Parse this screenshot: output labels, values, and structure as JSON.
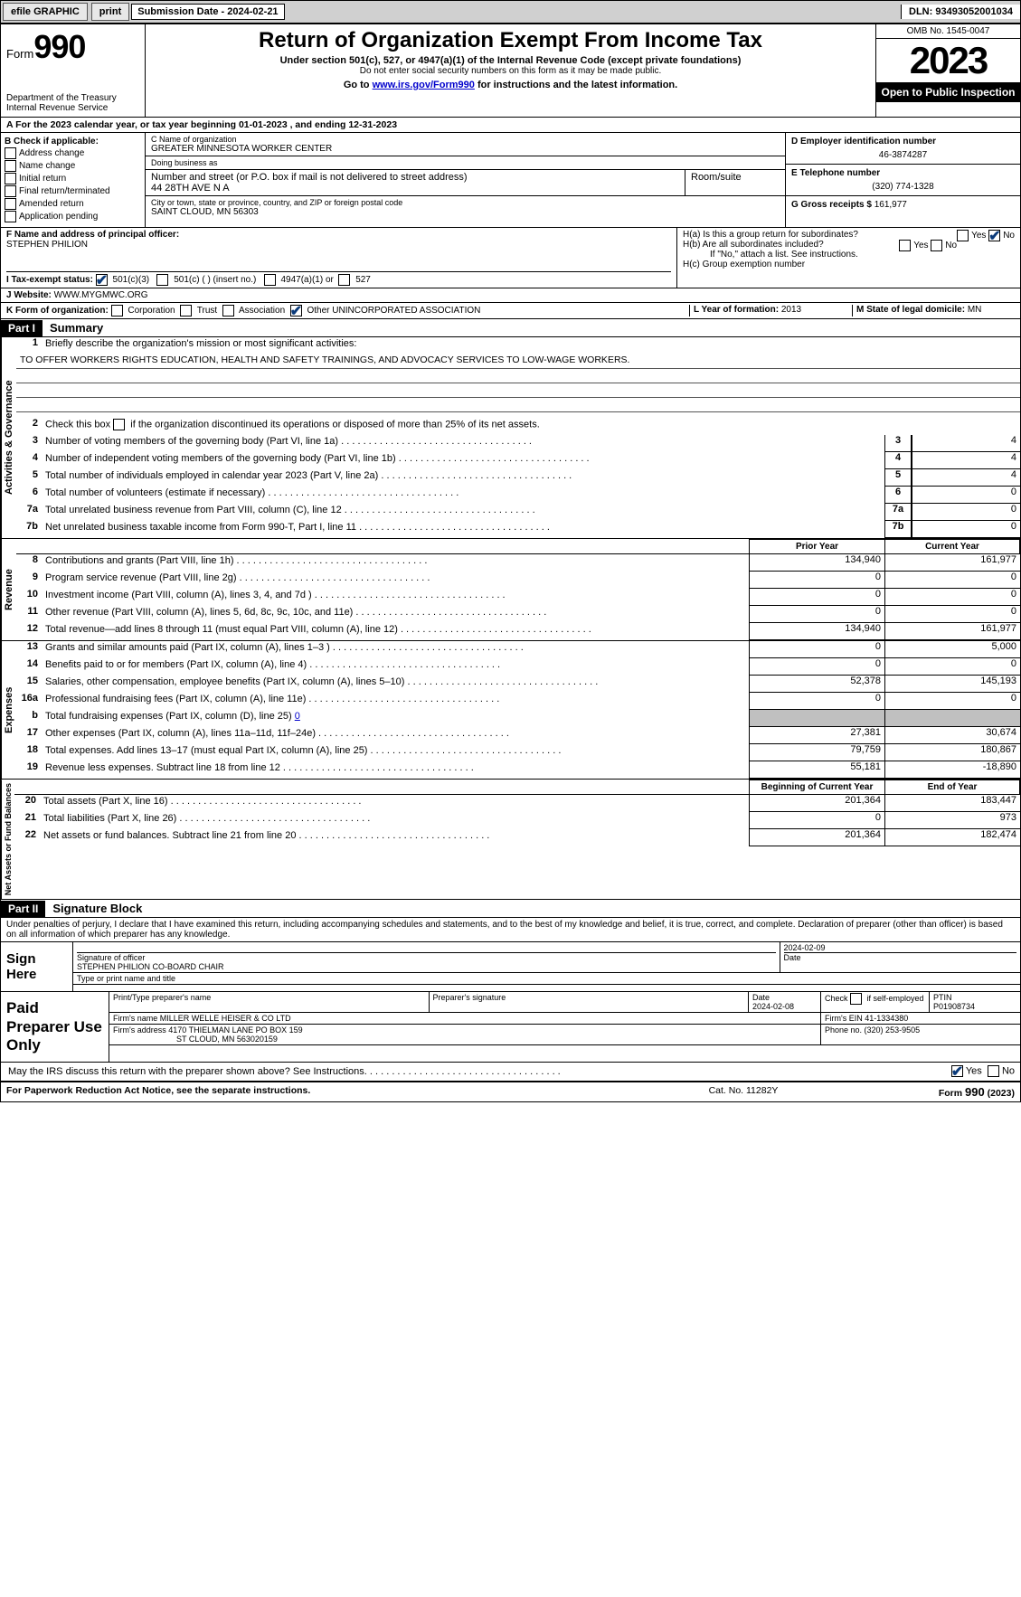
{
  "topbar": {
    "efile": "efile GRAPHIC",
    "print": "print",
    "subdate_label": "Submission Date - ",
    "subdate": "2024-02-21",
    "dln_label": "DLN: ",
    "dln": "93493052001034"
  },
  "header": {
    "form_label": "Form",
    "form_number": "990",
    "dept": "Department of the Treasury",
    "irs": "Internal Revenue Service",
    "title": "Return of Organization Exempt From Income Tax",
    "sub1": "Under section 501(c), 527, or 4947(a)(1) of the Internal Revenue Code (except private foundations)",
    "sub2": "Do not enter social security numbers on this form as it may be made public.",
    "sub3_pre": "Go to ",
    "sub3_link": "www.irs.gov/Form990",
    "sub3_post": " for instructions and the latest information.",
    "omb": "OMB No. 1545-0047",
    "year": "2023",
    "open": "Open to Public Inspection"
  },
  "row_a": {
    "text": "A For the 2023 calendar year, or tax year beginning 01-01-2023   , and ending 12-31-2023"
  },
  "box_b": {
    "label": "B Check if applicable:",
    "items": [
      "Address change",
      "Name change",
      "Initial return",
      "Final return/terminated",
      "Amended return",
      "Application pending"
    ]
  },
  "box_c": {
    "name_lbl": "C Name of organization",
    "name": "GREATER MINNESOTA WORKER CENTER",
    "dba_lbl": "Doing business as",
    "dba": "",
    "addr_lbl": "Number and street (or P.O. box if mail is not delivered to street address)",
    "addr": "44 28TH AVE N A",
    "room_lbl": "Room/suite",
    "city_lbl": "City or town, state or province, country, and ZIP or foreign postal code",
    "city": "SAINT CLOUD, MN  56303"
  },
  "box_d": {
    "lbl": "D Employer identification number",
    "val": "46-3874287"
  },
  "box_e": {
    "lbl": "E Telephone number",
    "val": "(320) 774-1328"
  },
  "box_g": {
    "lbl": "G Gross receipts $ ",
    "val": "161,977"
  },
  "box_f": {
    "lbl": "F  Name and address of principal officer:",
    "name": "STEPHEN PHILION"
  },
  "box_h": {
    "h_a": "H(a)  Is this a group return for subordinates?",
    "h_b": "H(b)  Are all subordinates included?",
    "h_note": "If \"No,\" attach a list. See instructions.",
    "h_c": "H(c)  Group exemption number ",
    "yes": "Yes",
    "no": "No"
  },
  "box_i": {
    "lbl": "I  Tax-exempt status:",
    "opts": [
      "501(c)(3)",
      "501(c) (  ) (insert no.)",
      "4947(a)(1) or",
      "527"
    ]
  },
  "box_j": {
    "lbl": "J  Website:  ",
    "val": "WWW.MYGMWC.ORG"
  },
  "box_k": {
    "lbl": "K Form of organization:",
    "opts": [
      "Corporation",
      "Trust",
      "Association",
      "Other"
    ],
    "other_val": "UNINCORPORATED ASSOCIATION"
  },
  "box_l": {
    "lbl": "L Year of formation: ",
    "val": "2013"
  },
  "box_m": {
    "lbl": "M State of legal domicile: ",
    "val": "MN"
  },
  "part1": {
    "hdr": "Part I",
    "title": "Summary",
    "sections": {
      "gov": "Activities & Governance",
      "rev": "Revenue",
      "exp": "Expenses",
      "net": "Net Assets or Fund Balances"
    },
    "line1_lbl": "Briefly describe the organization's mission or most significant activities:",
    "line1_val": "TO OFFER WORKERS RIGHTS EDUCATION, HEALTH AND SAFETY TRAININGS, AND ADVOCACY SERVICES TO LOW-WAGE WORKERS.",
    "line2": "Check this box      if the organization discontinued its operations or disposed of more than 25% of its net assets.",
    "gov_lines": [
      {
        "n": "3",
        "d": "Number of voting members of the governing body (Part VI, line 1a)",
        "v": "4"
      },
      {
        "n": "4",
        "d": "Number of independent voting members of the governing body (Part VI, line 1b)",
        "v": "4"
      },
      {
        "n": "5",
        "d": "Total number of individuals employed in calendar year 2023 (Part V, line 2a)",
        "v": "4"
      },
      {
        "n": "6",
        "d": "Total number of volunteers (estimate if necessary)",
        "v": "0"
      },
      {
        "n": "7a",
        "d": "Total unrelated business revenue from Part VIII, column (C), line 12",
        "v": "0"
      },
      {
        "n": "7b",
        "d": "Net unrelated business taxable income from Form 990-T, Part I, line 11",
        "v": "0"
      }
    ],
    "col_prior": "Prior Year",
    "col_current": "Current Year",
    "rev_lines": [
      {
        "n": "8",
        "d": "Contributions and grants (Part VIII, line 1h)",
        "p": "134,940",
        "c": "161,977"
      },
      {
        "n": "9",
        "d": "Program service revenue (Part VIII, line 2g)",
        "p": "0",
        "c": "0"
      },
      {
        "n": "10",
        "d": "Investment income (Part VIII, column (A), lines 3, 4, and 7d )",
        "p": "0",
        "c": "0"
      },
      {
        "n": "11",
        "d": "Other revenue (Part VIII, column (A), lines 5, 6d, 8c, 9c, 10c, and 11e)",
        "p": "0",
        "c": "0"
      },
      {
        "n": "12",
        "d": "Total revenue—add lines 8 through 11 (must equal Part VIII, column (A), line 12)",
        "p": "134,940",
        "c": "161,977"
      }
    ],
    "exp_lines": [
      {
        "n": "13",
        "d": "Grants and similar amounts paid (Part IX, column (A), lines 1–3 )",
        "p": "0",
        "c": "5,000"
      },
      {
        "n": "14",
        "d": "Benefits paid to or for members (Part IX, column (A), line 4)",
        "p": "0",
        "c": "0"
      },
      {
        "n": "15",
        "d": "Salaries, other compensation, employee benefits (Part IX, column (A), lines 5–10)",
        "p": "52,378",
        "c": "145,193"
      },
      {
        "n": "16a",
        "d": "Professional fundraising fees (Part IX, column (A), line 11e)",
        "p": "0",
        "c": "0"
      }
    ],
    "exp_16b": {
      "n": "b",
      "d": "Total fundraising expenses (Part IX, column (D), line 25) ",
      "link": "0"
    },
    "exp_lines2": [
      {
        "n": "17",
        "d": "Other expenses (Part IX, column (A), lines 11a–11d, 11f–24e)",
        "p": "27,381",
        "c": "30,674"
      },
      {
        "n": "18",
        "d": "Total expenses. Add lines 13–17 (must equal Part IX, column (A), line 25)",
        "p": "79,759",
        "c": "180,867"
      },
      {
        "n": "19",
        "d": "Revenue less expenses. Subtract line 18 from line 12",
        "p": "55,181",
        "c": "-18,890"
      }
    ],
    "col_begin": "Beginning of Current Year",
    "col_end": "End of Year",
    "net_lines": [
      {
        "n": "20",
        "d": "Total assets (Part X, line 16)",
        "p": "201,364",
        "c": "183,447"
      },
      {
        "n": "21",
        "d": "Total liabilities (Part X, line 26)",
        "p": "0",
        "c": "973"
      },
      {
        "n": "22",
        "d": "Net assets or fund balances. Subtract line 21 from line 20",
        "p": "201,364",
        "c": "182,474"
      }
    ]
  },
  "part2": {
    "hdr": "Part II",
    "title": "Signature Block",
    "decl": "Under penalties of perjury, I declare that I have examined this return, including accompanying schedules and statements, and to the best of my knowledge and belief, it is true, correct, and complete. Declaration of preparer (other than officer) is based on all information of which preparer has any knowledge.",
    "sign_here": "Sign Here",
    "sig_officer_lbl": "Signature of officer",
    "sig_officer": "STEPHEN PHILION  CO-BOARD CHAIR",
    "sig_date": "2024-02-09",
    "sig_date_lbl": "Date",
    "sig_name_lbl": "Type or print name and title",
    "paid": "Paid Preparer Use Only",
    "prep_name_lbl": "Print/Type preparer's name",
    "prep_sig_lbl": "Preparer's signature",
    "prep_date_lbl": "Date",
    "prep_date": "2024-02-08",
    "prep_self": "Check       if self-employed",
    "ptin_lbl": "PTIN",
    "ptin": "P01908734",
    "firm_name_lbl": "Firm's name   ",
    "firm_name": "MILLER WELLE HEISER & CO LTD",
    "firm_ein_lbl": "Firm's EIN  ",
    "firm_ein": "41-1334380",
    "firm_addr_lbl": "Firm's address ",
    "firm_addr1": "4170 THIELMAN LANE PO BOX 159",
    "firm_addr2": "ST CLOUD, MN  563020159",
    "phone_lbl": "Phone no. ",
    "phone": "(320) 253-9505",
    "discuss": "May the IRS discuss this return with the preparer shown above? See Instructions.",
    "yes": "Yes",
    "no": "No"
  },
  "footer": {
    "left": "For Paperwork Reduction Act Notice, see the separate instructions.",
    "cat": "Cat. No. 11282Y",
    "right": "Form 990 (2023)"
  }
}
